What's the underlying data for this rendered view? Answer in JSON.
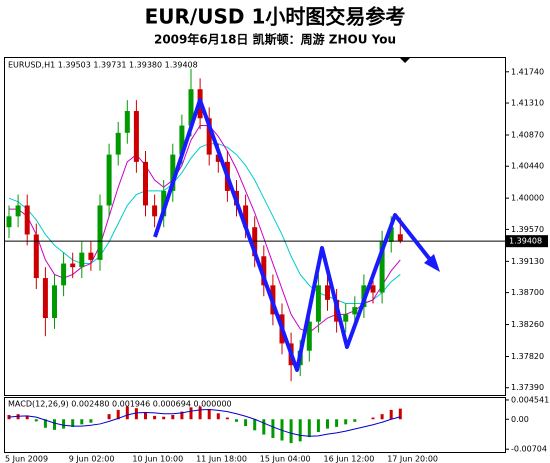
{
  "chart_data": [
    {
      "type": "candlestick",
      "title": "EUR/USD  1小时图交易参考",
      "subtitle": "2009年6月18日   凯斯顿：周游 ZHOU You",
      "header": "EURUSD,H1  1.39503  1.39731  1.39380  1.39408",
      "categories": [
        "5 Jun 2009",
        null,
        null,
        null,
        null,
        null,
        null,
        "9 Jun 02:00",
        null,
        null,
        null,
        null,
        null,
        null,
        "10 Jun 10:00",
        null,
        null,
        null,
        null,
        null,
        null,
        "11 Jun 18:00",
        null,
        null,
        null,
        null,
        null,
        null,
        "15 Jun 04:00",
        null,
        null,
        null,
        null,
        null,
        null,
        "16 Jun 12:00",
        null,
        null,
        null,
        null,
        null,
        null,
        "17 Jun 20:00",
        null
      ],
      "open": [
        1.396,
        1.3975,
        1.399,
        1.395,
        1.389,
        1.3835,
        1.388,
        1.391,
        1.3905,
        1.3925,
        1.3915,
        1.399,
        1.406,
        1.409,
        1.412,
        1.405,
        1.399,
        1.3975,
        1.401,
        1.406,
        1.41,
        1.415,
        1.411,
        1.406,
        1.405,
        1.401,
        1.399,
        1.396,
        1.392,
        1.388,
        1.384,
        1.38,
        1.377,
        1.379,
        1.383,
        1.388,
        1.386,
        1.383,
        1.384,
        1.385,
        1.388,
        1.387,
        1.394,
        1.39503
      ],
      "high": [
        1.399,
        1.4005,
        1.4005,
        1.3965,
        1.3905,
        1.3895,
        1.3925,
        1.3925,
        1.394,
        1.394,
        1.4005,
        1.4075,
        1.4105,
        1.4135,
        1.4135,
        1.4065,
        1.4005,
        1.4025,
        1.4075,
        1.4115,
        1.4178,
        1.4165,
        1.4125,
        1.4075,
        1.4065,
        1.4025,
        1.4005,
        1.3975,
        1.3935,
        1.3895,
        1.3855,
        1.3815,
        1.3805,
        1.3845,
        1.3895,
        1.3895,
        1.3875,
        1.3855,
        1.3865,
        1.3895,
        1.3895,
        1.3955,
        1.3975,
        1.39731
      ],
      "low": [
        1.3945,
        1.396,
        1.3935,
        1.3875,
        1.381,
        1.382,
        1.3865,
        1.389,
        1.389,
        1.39,
        1.39,
        1.3975,
        1.4045,
        1.4075,
        1.4035,
        1.3975,
        1.396,
        1.396,
        1.3995,
        1.4045,
        1.4085,
        1.4095,
        1.4045,
        1.4035,
        1.3995,
        1.3975,
        1.3945,
        1.3905,
        1.3865,
        1.3825,
        1.3785,
        1.3748,
        1.3755,
        1.3775,
        1.3815,
        1.3845,
        1.3815,
        1.3815,
        1.3825,
        1.3835,
        1.3855,
        1.3855,
        1.3925,
        1.3938
      ],
      "close": [
        1.3975,
        1.399,
        1.395,
        1.389,
        1.3835,
        1.388,
        1.391,
        1.3905,
        1.3925,
        1.3915,
        1.399,
        1.406,
        1.409,
        1.412,
        1.405,
        1.399,
        1.3975,
        1.401,
        1.406,
        1.41,
        1.415,
        1.411,
        1.406,
        1.405,
        1.401,
        1.399,
        1.396,
        1.392,
        1.388,
        1.384,
        1.38,
        1.377,
        1.379,
        1.383,
        1.388,
        1.386,
        1.383,
        1.384,
        1.385,
        1.388,
        1.387,
        1.394,
        1.396,
        1.39408
      ],
      "up_color": "#009900",
      "down_color": "#cc0000",
      "series": [
        {
          "color": "#00cccc",
          "values": [
            1.4,
            1.3995,
            1.3985,
            1.397,
            1.395,
            1.3935,
            1.3925,
            1.3915,
            1.391,
            1.391,
            1.392,
            1.394,
            1.3965,
            1.399,
            1.4005,
            1.401,
            1.401,
            1.401,
            1.402,
            1.4035,
            1.4055,
            1.407,
            1.4075,
            1.4075,
            1.407,
            1.406,
            1.4045,
            1.4025,
            1.4,
            1.3975,
            1.395,
            1.392,
            1.3895,
            1.388,
            1.387,
            1.3865,
            1.386,
            1.3855,
            1.3855,
            1.3855,
            1.386,
            1.387,
            1.3885,
            1.3895
          ]
        },
        {
          "color": "#cc00cc",
          "values": [
            1.3985,
            1.3985,
            1.3975,
            1.395,
            1.3915,
            1.3895,
            1.389,
            1.3895,
            1.3905,
            1.391,
            1.3935,
            1.3975,
            1.4015,
            1.405,
            1.406,
            1.4045,
            1.4025,
            1.4015,
            1.4025,
            1.4045,
            1.408,
            1.41,
            1.41,
            1.4085,
            1.4065,
            1.404,
            1.401,
            1.398,
            1.3945,
            1.391,
            1.3875,
            1.384,
            1.382,
            1.3815,
            1.3825,
            1.3835,
            1.384,
            1.384,
            1.3845,
            1.3855,
            1.386,
            1.388,
            1.39,
            1.3915
          ]
        }
      ],
      "current_price": 1.39408,
      "ylim": [
        1.3729,
        1.4193
      ],
      "yticks": [
        {
          "value": 1.4174,
          "label": "1.41740"
        },
        {
          "value": 1.4131,
          "label": "1.41310"
        },
        {
          "value": 1.4087,
          "label": "1.40870"
        },
        {
          "value": 1.4044,
          "label": "1.40440"
        },
        {
          "value": 1.4,
          "label": "1.40000"
        },
        {
          "value": 1.3957,
          "label": "1.39570"
        },
        {
          "value": 1.3913,
          "label": "1.39130"
        },
        {
          "value": 1.387,
          "label": "1.38700"
        },
        {
          "value": 1.3826,
          "label": "1.38260"
        },
        {
          "value": 1.3782,
          "label": "1.37820"
        },
        {
          "value": 1.3739,
          "label": "1.37390"
        }
      ]
    },
    {
      "type": "macd",
      "header": "MACD(12,26,9)  0.002480  0.001946  0.000694  0.000000",
      "histogram": [
        0.001,
        0.0012,
        0.0008,
        -0.0005,
        -0.002,
        -0.0025,
        -0.0022,
        -0.0018,
        -0.0012,
        -0.0008,
        0.0,
        0.0012,
        0.0022,
        0.003,
        0.0026,
        0.0016,
        0.0008,
        0.0006,
        0.001,
        0.0018,
        0.0028,
        0.003,
        0.0024,
        0.0014,
        0.0004,
        -0.0006,
        -0.0016,
        -0.0026,
        -0.0036,
        -0.0044,
        -0.005,
        -0.0056,
        -0.0052,
        -0.0042,
        -0.003,
        -0.0022,
        -0.0018,
        -0.0012,
        -0.0006,
        0.0,
        0.0004,
        0.0012,
        0.0022,
        0.0025
      ],
      "signal": [
        0.0005,
        0.0007,
        0.0008,
        0.0005,
        -0.0002,
        -0.0009,
        -0.0014,
        -0.0016,
        -0.0016,
        -0.0014,
        -0.0011,
        -0.0005,
        0.0002,
        0.001,
        0.0015,
        0.0016,
        0.0015,
        0.0013,
        0.0013,
        0.0015,
        0.0019,
        0.0022,
        0.0023,
        0.0021,
        0.0018,
        0.0013,
        0.0007,
        0.0,
        -0.0009,
        -0.0018,
        -0.0026,
        -0.0033,
        -0.0038,
        -0.004,
        -0.0039,
        -0.0035,
        -0.0032,
        -0.0028,
        -0.0023,
        -0.0018,
        -0.0013,
        -0.0007,
        0.0,
        0.0006
      ],
      "up_color": "#cc0000",
      "down_color": "#009900",
      "signal_color": "#0000cc",
      "ylim": [
        -0.0077,
        0.005
      ],
      "yticks": [
        0.004541,
        {
          "value": 0,
          "label": "0.00"
        },
        -0.00704
      ]
    }
  ]
}
